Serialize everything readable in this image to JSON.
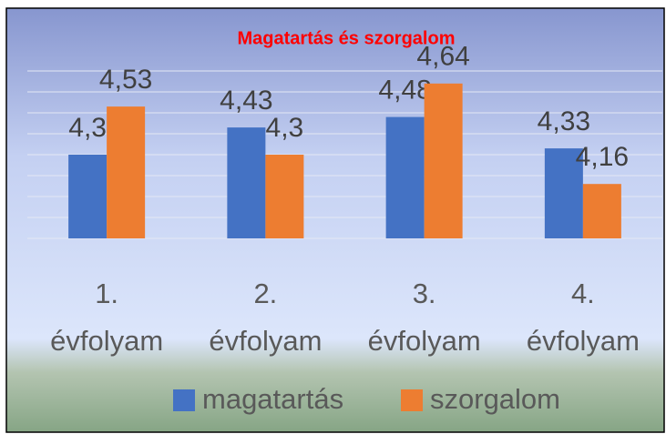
{
  "chart_data": {
    "type": "bar",
    "title": "Magatartás és szorgalom",
    "categories": [
      "1. évfolyam",
      "2. évfolyam",
      "3. évfolyam",
      "4. évfolyam"
    ],
    "series": [
      {
        "name": "magatartás",
        "color": "#4472c4",
        "values": [
          4.3,
          4.43,
          4.48,
          4.33
        ],
        "value_labels": [
          "4,3",
          "4,43",
          "4,48",
          "4,33"
        ]
      },
      {
        "name": "szorgalom",
        "color": "#ed7d31",
        "values": [
          4.53,
          4.3,
          4.64,
          4.16
        ],
        "value_labels": [
          "4,53",
          "4,3",
          "4,64",
          "4,16"
        ]
      }
    ],
    "ylim": [
      3.9,
      4.7
    ],
    "yticks": [
      3.9,
      4,
      4.1,
      4.2,
      4.3,
      4.4,
      4.5,
      4.6,
      4.7
    ],
    "grid": true,
    "legend": "bottom"
  }
}
